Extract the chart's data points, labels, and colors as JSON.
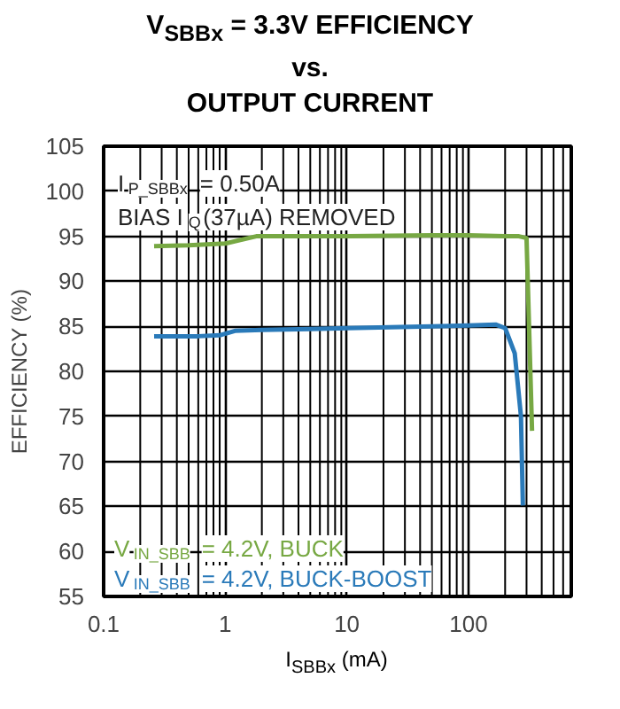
{
  "chart_data": {
    "type": "line",
    "title": "V$_{SBBx}$ = 3.3V EFFICIENCY\nvs.\nOUTPUT CURRENT",
    "xlabel": "I$_{SBBx}$ (mA)",
    "ylabel": "EFFICIENCY (%)",
    "log": "x",
    "xlim": [
      0.1,
      700
    ],
    "xticks": [
      0.1,
      1,
      10,
      100
    ],
    "ylim": [
      55,
      105
    ],
    "yticks": [
      55,
      60,
      65,
      70,
      75,
      80,
      85,
      90,
      95,
      100,
      105
    ],
    "grid": true,
    "annotations": [
      "I$_{P_SBBx}$ = 0.50A",
      "BIAS I$_{Q}$(37µA) REMOVED"
    ],
    "series": [
      {
        "name": "V$_{IN_SBB}$ = 4.2V, BUCK",
        "color": "#77a843",
        "x": [
          0.26,
          0.5,
          1,
          1.8,
          5,
          10,
          50,
          100,
          200,
          260,
          300,
          333
        ],
        "values": [
          93.9,
          94.0,
          94.2,
          95.0,
          95.0,
          95.0,
          95.1,
          95.1,
          95.0,
          95.0,
          94.8,
          73.4
        ]
      },
      {
        "name": "V$_{IN_SBB}$ = 4.2V, BUCK-BOOST",
        "color": "#2a7ab9",
        "x": [
          0.26,
          0.6,
          0.9,
          1.2,
          2,
          5,
          10,
          50,
          100,
          167,
          200,
          240,
          270,
          280
        ],
        "values": [
          83.9,
          83.9,
          84.0,
          84.5,
          84.6,
          84.7,
          84.8,
          85.0,
          85.1,
          85.2,
          84.8,
          82.0,
          75.0,
          65.1
        ]
      }
    ]
  }
}
